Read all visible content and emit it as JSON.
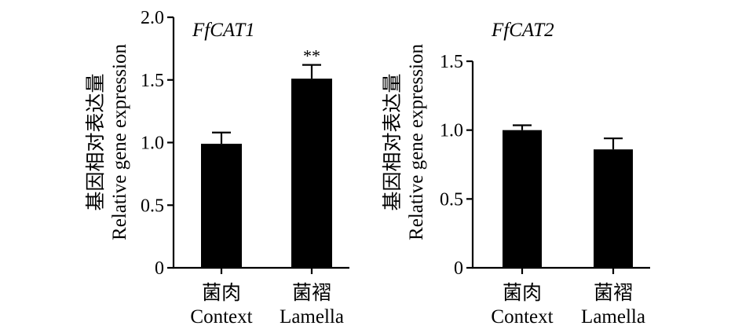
{
  "chart_data": [
    {
      "type": "bar",
      "title": "FfCAT1",
      "ylabel_cn": "基因相对表达量",
      "ylabel": "Relative gene expression",
      "categories_cn": [
        "菌肉",
        "菌褶"
      ],
      "categories": [
        "Context",
        "Lamella"
      ],
      "values": [
        0.99,
        1.51
      ],
      "errors": [
        0.09,
        0.11
      ],
      "significance": [
        "",
        "**"
      ],
      "ylim": [
        0,
        2.0
      ],
      "yticks": [
        0,
        0.5,
        1.0,
        1.5,
        2.0
      ],
      "ytick_labels": [
        "0",
        "0.5",
        "1.0",
        "1.5",
        "2.0"
      ],
      "bar_color": "#000000",
      "grid": false
    },
    {
      "type": "bar",
      "title": "FfCAT2",
      "ylabel_cn": "基因相对表达量",
      "ylabel": "Relative gene expression",
      "categories_cn": [
        "菌肉",
        "菌褶"
      ],
      "categories": [
        "Context",
        "Lamella"
      ],
      "values": [
        1.0,
        0.86
      ],
      "errors": [
        0.035,
        0.08
      ],
      "significance": [
        "",
        ""
      ],
      "ylim": [
        0,
        1.5
      ],
      "yticks": [
        0,
        0.5,
        1.0,
        1.5
      ],
      "ytick_labels": [
        "0",
        "0.5",
        "1.0",
        "1.5"
      ],
      "bar_color": "#000000",
      "grid": false
    }
  ]
}
